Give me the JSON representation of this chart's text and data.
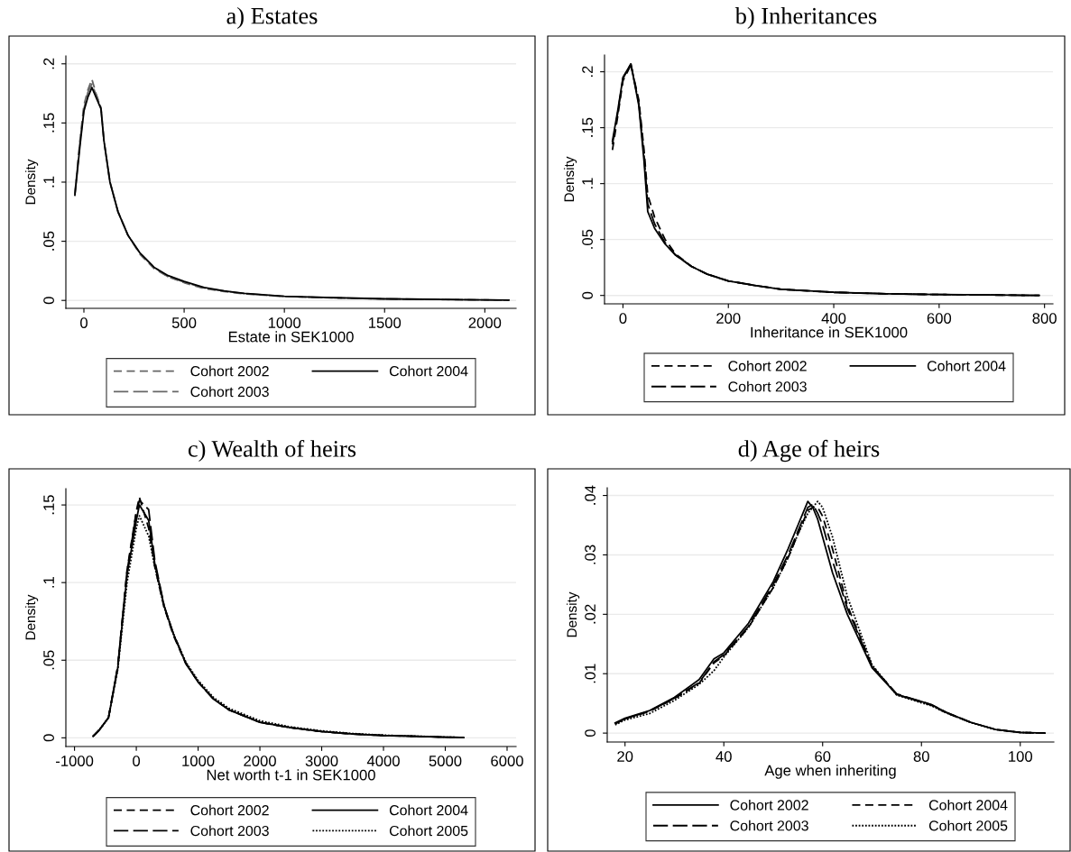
{
  "chart_data": [
    {
      "type": "line",
      "title": "a) Estates",
      "xlabel": "Estate in SEK1000",
      "ylabel": "Density",
      "grid": "y",
      "legend": "bottom",
      "xlim": [
        -90,
        2156
      ],
      "xticks": [
        0,
        500,
        1000,
        1500,
        2000
      ],
      "ylim": [
        -0.0067,
        0.2067
      ],
      "yticks": [
        {
          "value": 0,
          "label": "0"
        },
        {
          "value": 0.05,
          "label": ".05"
        },
        {
          "value": 0.1,
          "label": ".1"
        },
        {
          "value": 0.15,
          "label": ".15"
        },
        {
          "value": 0.2,
          "label": ".2"
        }
      ],
      "x": [
        -45,
        -20,
        0,
        20,
        40,
        60,
        85,
        100,
        130,
        170,
        220,
        280,
        350,
        420,
        500,
        600,
        700,
        800,
        1000,
        1200,
        1500,
        1800,
        2120
      ],
      "series": [
        {
          "name": "Cohort 2002",
          "color": "#666666",
          "line_style": "dashed",
          "values": [
            0.09,
            0.135,
            0.165,
            0.178,
            0.187,
            0.175,
            0.163,
            0.135,
            0.1,
            0.075,
            0.055,
            0.039,
            0.027,
            0.02,
            0.015,
            0.01,
            0.0075,
            0.0055,
            0.0033,
            0.0023,
            0.0012,
            0.0007,
            0.0002
          ]
        },
        {
          "name": "Cohort 2003",
          "color": "#666666",
          "line_style": "long dashed",
          "values": [
            0.09,
            0.133,
            0.162,
            0.176,
            0.183,
            0.174,
            0.163,
            0.135,
            0.1,
            0.075,
            0.055,
            0.04,
            0.028,
            0.02,
            0.0155,
            0.0105,
            0.0078,
            0.0058,
            0.0034,
            0.0024,
            0.0013,
            0.0008,
            0.0002
          ]
        },
        {
          "name": "Cohort 2004",
          "color": "#000000",
          "line_style": "solid",
          "values": [
            0.089,
            0.13,
            0.16,
            0.172,
            0.18,
            0.172,
            0.162,
            0.135,
            0.1,
            0.075,
            0.055,
            0.04,
            0.028,
            0.021,
            0.016,
            0.011,
            0.008,
            0.006,
            0.0035,
            0.0025,
            0.0013,
            0.0008,
            0.0002
          ]
        }
      ]
    },
    {
      "type": "line",
      "title": "b) Inheritances",
      "xlabel": "Inheritance in SEK1000",
      "ylabel": "Density",
      "grid": "y",
      "legend": "bottom",
      "xlim": [
        -35,
        816
      ],
      "xticks": [
        0,
        200,
        400,
        600,
        800
      ],
      "ylim": [
        -0.0075,
        0.215
      ],
      "yticks": [
        {
          "value": 0,
          "label": "0"
        },
        {
          "value": 0.05,
          "label": ".05"
        },
        {
          "value": 0.1,
          "label": ".1"
        },
        {
          "value": 0.15,
          "label": ".15"
        },
        {
          "value": 0.2,
          "label": ".2"
        }
      ],
      "x": [
        -20,
        -10,
        0,
        15,
        30,
        40,
        47,
        60,
        80,
        100,
        130,
        160,
        200,
        250,
        300,
        400,
        500,
        600,
        700,
        790
      ],
      "series": [
        {
          "name": "Cohort 2002",
          "color": "#000000",
          "line_style": "dashed",
          "values": [
            0.13,
            0.16,
            0.192,
            0.206,
            0.175,
            0.13,
            0.09,
            0.07,
            0.05,
            0.037,
            0.026,
            0.019,
            0.013,
            0.009,
            0.0055,
            0.0028,
            0.0015,
            0.0008,
            0.0004,
            0.0
          ]
        },
        {
          "name": "Cohort 2003",
          "color": "#000000",
          "line_style": "long dashed",
          "values": [
            0.135,
            0.163,
            0.194,
            0.207,
            0.172,
            0.125,
            0.082,
            0.064,
            0.047,
            0.036,
            0.026,
            0.019,
            0.013,
            0.009,
            0.0055,
            0.0028,
            0.0015,
            0.0008,
            0.0004,
            0.0
          ]
        },
        {
          "name": "Cohort 2004",
          "color": "#000000",
          "line_style": "solid",
          "values": [
            0.138,
            0.165,
            0.195,
            0.207,
            0.17,
            0.12,
            0.075,
            0.06,
            0.046,
            0.036,
            0.026,
            0.019,
            0.013,
            0.009,
            0.0055,
            0.0028,
            0.0015,
            0.0008,
            0.0004,
            0.0
          ]
        }
      ]
    },
    {
      "type": "line",
      "title": "c) Wealth of heirs",
      "xlabel": "Net worth t-1 in SEK1000",
      "ylabel": "Density",
      "grid": "y",
      "legend": "bottom",
      "xlim": [
        -1140,
        6146
      ],
      "xticks": [
        -1000,
        0,
        1000,
        2000,
        3000,
        4000,
        5000,
        6000
      ],
      "ylim": [
        -0.0056,
        0.1605
      ],
      "yticks": [
        {
          "value": 0,
          "label": "0"
        },
        {
          "value": 0.05,
          "label": ".05"
        },
        {
          "value": 0.1,
          "label": ".1"
        },
        {
          "value": 0.15,
          "label": ".15"
        }
      ],
      "x": [
        -700,
        -600,
        -450,
        -300,
        -150,
        0,
        50,
        200,
        300,
        450,
        600,
        800,
        1000,
        1250,
        1500,
        2000,
        2500,
        3000,
        3500,
        4000,
        4500,
        5000,
        5300
      ],
      "series": [
        {
          "name": "Cohort 2002",
          "color": "#000000",
          "line_style": "dashed",
          "values": [
            0.001,
            0.005,
            0.013,
            0.046,
            0.108,
            0.146,
            0.155,
            0.135,
            0.11,
            0.084,
            0.066,
            0.048,
            0.036,
            0.025,
            0.018,
            0.01,
            0.0065,
            0.004,
            0.0025,
            0.0015,
            0.001,
            0.0004,
            0.0002
          ]
        },
        {
          "name": "Cohort 2003",
          "color": "#000000",
          "line_style": "long dashed",
          "values": [
            0.001,
            0.005,
            0.013,
            0.046,
            0.107,
            0.145,
            0.153,
            0.147,
            0.114,
            0.085,
            0.067,
            0.048,
            0.036,
            0.025,
            0.018,
            0.01,
            0.0065,
            0.004,
            0.0025,
            0.0015,
            0.001,
            0.0004,
            0.0002
          ]
        },
        {
          "name": "Cohort 2004",
          "color": "#000000",
          "line_style": "solid",
          "values": [
            0.001,
            0.005,
            0.013,
            0.045,
            0.105,
            0.14,
            0.15,
            0.14,
            0.112,
            0.085,
            0.067,
            0.048,
            0.036,
            0.025,
            0.018,
            0.01,
            0.0065,
            0.004,
            0.0025,
            0.0015,
            0.001,
            0.0004,
            0.0002
          ]
        },
        {
          "name": "Cohort 2005",
          "color": "#000000",
          "line_style": "dotted",
          "values": [
            0.001,
            0.005,
            0.013,
            0.044,
            0.1,
            0.135,
            0.143,
            0.13,
            0.11,
            0.084,
            0.067,
            0.049,
            0.037,
            0.026,
            0.019,
            0.011,
            0.007,
            0.0045,
            0.0028,
            0.0017,
            0.0011,
            0.0005,
            0.0002
          ]
        }
      ]
    },
    {
      "type": "line",
      "title": "d) Age of heirs",
      "xlabel": "Age when inheriting",
      "ylabel": "Density",
      "grid": "y",
      "legend": "bottom",
      "xlim": [
        16.4,
        106.8
      ],
      "xticks": [
        20,
        40,
        60,
        80,
        100
      ],
      "ylim": [
        -0.0015,
        0.0413
      ],
      "yticks": [
        {
          "value": 0,
          "label": "0"
        },
        {
          "value": 0.01,
          "label": ".01"
        },
        {
          "value": 0.02,
          "label": ".02"
        },
        {
          "value": 0.03,
          "label": ".03"
        },
        {
          "value": 0.04,
          "label": ".04"
        }
      ],
      "x": [
        18,
        20,
        25,
        30,
        35,
        38,
        40,
        45,
        50,
        53,
        55,
        57,
        58,
        59,
        60,
        62,
        65,
        70,
        75,
        80,
        82,
        85,
        90,
        95,
        100,
        105
      ],
      "series": [
        {
          "name": "Cohort 2002",
          "color": "#000000",
          "line_style": "solid",
          "values": [
            0.0017,
            0.0025,
            0.0038,
            0.006,
            0.009,
            0.0125,
            0.0135,
            0.0185,
            0.0255,
            0.031,
            0.035,
            0.039,
            0.038,
            0.036,
            0.033,
            0.027,
            0.02,
            0.011,
            0.0065,
            0.0053,
            0.0048,
            0.0035,
            0.0018,
            0.0006,
            0.0001,
            0.0
          ]
        },
        {
          "name": "Cohort 2003",
          "color": "#000000",
          "line_style": "long dashed",
          "values": [
            0.0016,
            0.0024,
            0.0037,
            0.0059,
            0.0085,
            0.012,
            0.0132,
            0.018,
            0.025,
            0.03,
            0.034,
            0.038,
            0.0385,
            0.037,
            0.035,
            0.029,
            0.021,
            0.0112,
            0.0066,
            0.0053,
            0.0048,
            0.0035,
            0.0018,
            0.0006,
            0.0001,
            0.0
          ]
        },
        {
          "name": "Cohort 2004",
          "color": "#000000",
          "line_style": "dashed",
          "values": [
            0.0016,
            0.0024,
            0.0037,
            0.0058,
            0.0084,
            0.0118,
            0.013,
            0.0178,
            0.0245,
            0.0295,
            0.0335,
            0.0375,
            0.038,
            0.038,
            0.0365,
            0.031,
            0.0215,
            0.0113,
            0.0065,
            0.0052,
            0.0047,
            0.0034,
            0.0018,
            0.0006,
            0.0001,
            0.0
          ]
        },
        {
          "name": "Cohort 2005",
          "color": "#000000",
          "line_style": "dotted",
          "values": [
            0.0014,
            0.0022,
            0.0033,
            0.0055,
            0.0082,
            0.0105,
            0.0128,
            0.0178,
            0.0245,
            0.0295,
            0.0335,
            0.037,
            0.038,
            0.039,
            0.038,
            0.033,
            0.023,
            0.0115,
            0.0064,
            0.0051,
            0.0046,
            0.0034,
            0.0018,
            0.0006,
            0.0001,
            0.0
          ]
        }
      ]
    }
  ]
}
